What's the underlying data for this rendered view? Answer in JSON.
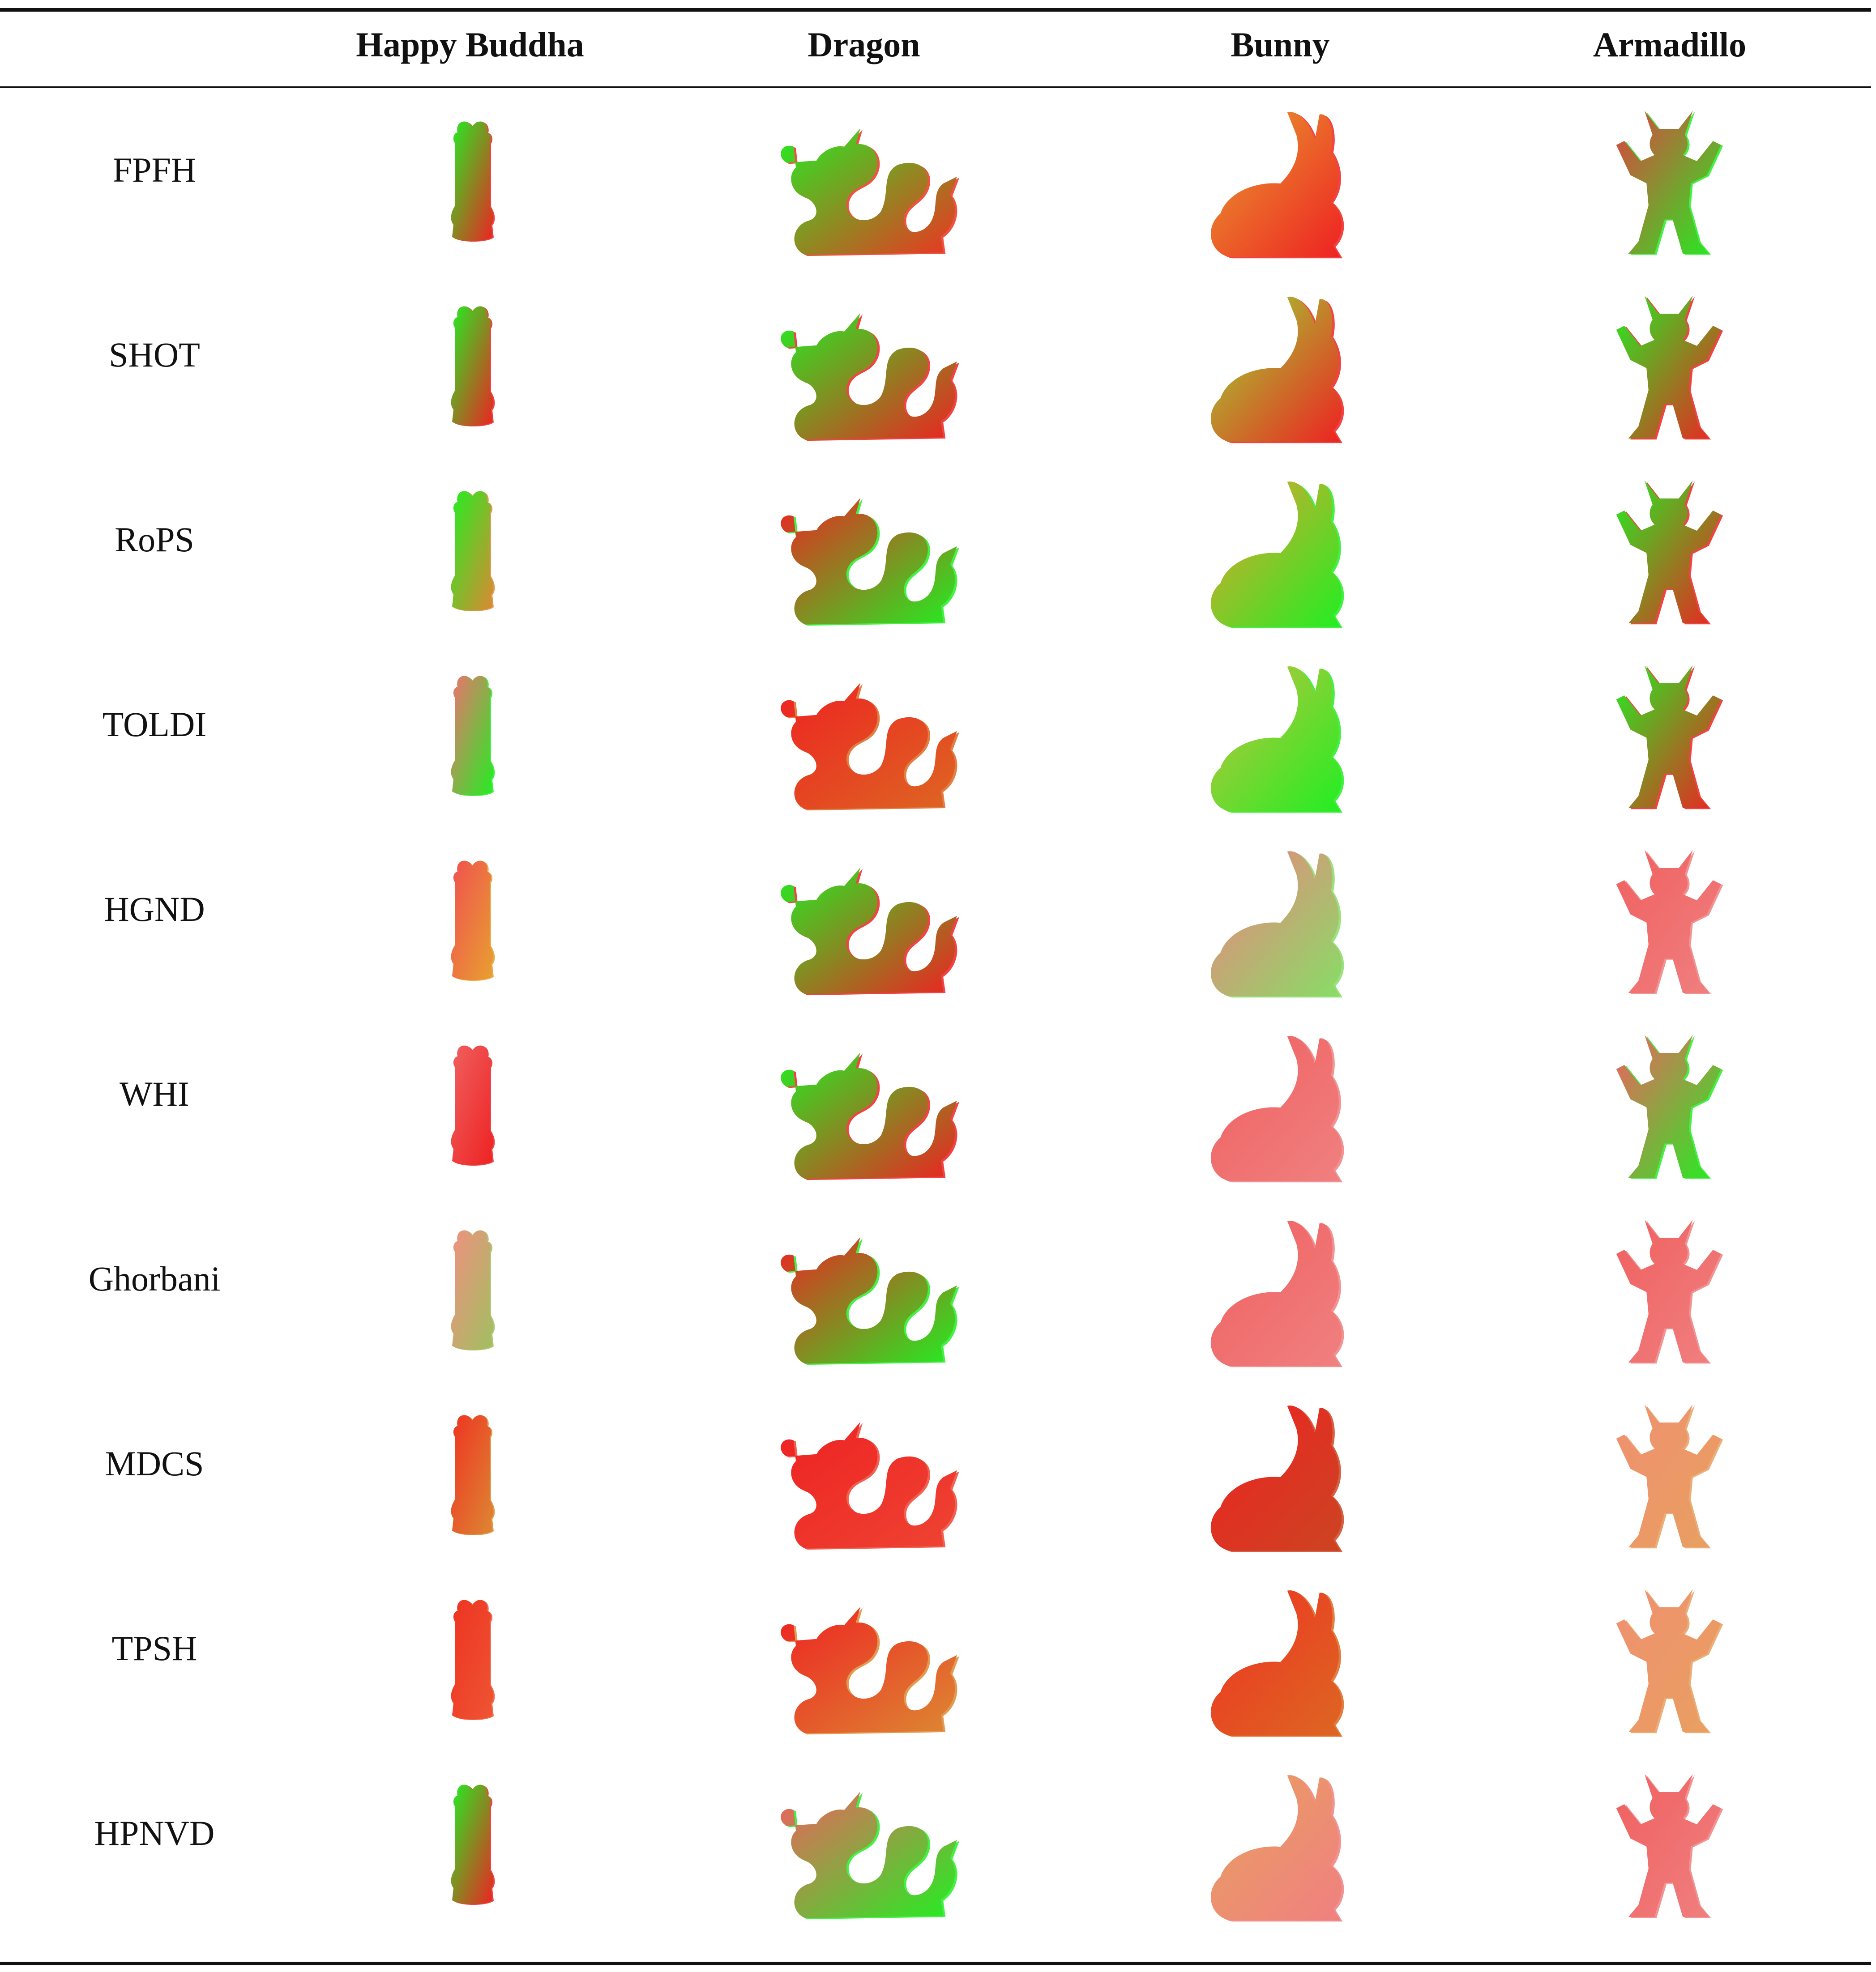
{
  "columns": [
    "Happy Buddha",
    "Dragon",
    "Bunny",
    "Armadillo"
  ],
  "rows": [
    {
      "method": "FPFH",
      "tints": [
        [
          "#22ee22",
          "#ee2222"
        ],
        [
          "#22ee22",
          "#ee3322"
        ],
        [
          "#e8a030",
          "#ee2222"
        ],
        [
          "#e04040",
          "#22ee22"
        ]
      ]
    },
    {
      "method": "SHOT",
      "tints": [
        [
          "#22ee22",
          "#ee2222"
        ],
        [
          "#22ee22",
          "#ee2222"
        ],
        [
          "#99dd33",
          "#ee2222"
        ],
        [
          "#22ee22",
          "#ee2222"
        ]
      ]
    },
    {
      "method": "RoPS",
      "tints": [
        [
          "#22ee22",
          "#dd8833"
        ],
        [
          "#ee2222",
          "#22ee22"
        ],
        [
          "#e8a030",
          "#22ee22"
        ],
        [
          "#22ee22",
          "#ee2222"
        ]
      ]
    },
    {
      "method": "TOLDI",
      "tints": [
        [
          "#f07070",
          "#22ee22"
        ],
        [
          "#ee2222",
          "#dd6622"
        ],
        [
          "#c8c040",
          "#22ee22"
        ],
        [
          "#22ee22",
          "#ee2222"
        ]
      ]
    },
    {
      "method": "HGND",
      "tints": [
        [
          "#f05050",
          "#e8a030"
        ],
        [
          "#22ee22",
          "#ee2222"
        ],
        [
          "#f08080",
          "#88dd66"
        ],
        [
          "#f06060",
          "#f08080"
        ]
      ]
    },
    {
      "method": "WHI",
      "tints": [
        [
          "#f06060",
          "#ee2222"
        ],
        [
          "#22ee22",
          "#ee2222"
        ],
        [
          "#f06060",
          "#f08080"
        ],
        [
          "#f06060",
          "#22ee22"
        ]
      ]
    },
    {
      "method": "Ghorbani",
      "tints": [
        [
          "#f09080",
          "#a0c060"
        ],
        [
          "#ee2222",
          "#22ee22"
        ],
        [
          "#f06060",
          "#f08080"
        ],
        [
          "#f06060",
          "#f08080"
        ]
      ]
    },
    {
      "method": "MDCS",
      "tints": [
        [
          "#ee3322",
          "#dd8833"
        ],
        [
          "#ee2222",
          "#ee4433"
        ],
        [
          "#ee2222",
          "#cc4422"
        ],
        [
          "#f09070",
          "#e8a060"
        ]
      ]
    },
    {
      "method": "TPSH",
      "tints": [
        [
          "#ee3322",
          "#ee5533"
        ],
        [
          "#ee2222",
          "#dd8833"
        ],
        [
          "#ee3322",
          "#dd6622"
        ],
        [
          "#f09070",
          "#e8a060"
        ]
      ]
    },
    {
      "method": "HPNVD",
      "tints": [
        [
          "#22ee22",
          "#ee2222"
        ],
        [
          "#f06060",
          "#22ee22"
        ],
        [
          "#e8a060",
          "#f08080"
        ],
        [
          "#f06060",
          "#f08080"
        ]
      ]
    }
  ]
}
